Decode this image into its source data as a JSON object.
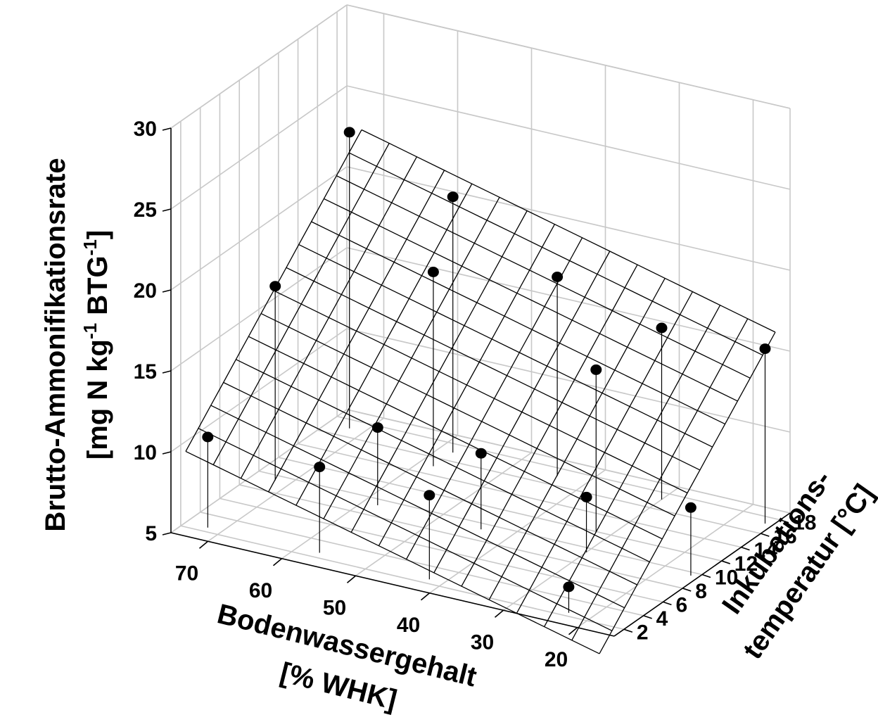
{
  "chart_data": {
    "type": "scatter3d-surface",
    "x_axis": {
      "title_line1": "Bodenwassergehalt",
      "title_line2": "[% WHK]",
      "range": [
        15,
        75
      ],
      "ticks": [
        70,
        60,
        50,
        40,
        30,
        20
      ]
    },
    "y_axis": {
      "title_line1": "Inkubations-",
      "title_line2": "temperatur [°C]",
      "range": [
        1,
        19
      ],
      "ticks": [
        2,
        4,
        6,
        8,
        10,
        12,
        14,
        16,
        18
      ]
    },
    "z_axis": {
      "title_line1": "Brutto-Ammonifikationsrate",
      "title_line2_prefix": "[mg N kg",
      "title_line2_sup1": "-1",
      "title_line2_mid": " BTG",
      "title_line2_sup2": "-1",
      "title_line2_suffix": "]",
      "range": [
        5,
        30
      ],
      "ticks": [
        5,
        10,
        15,
        20,
        25,
        30
      ]
    },
    "points": [
      {
        "x": 72,
        "y": 2.5,
        "z": 10.6
      },
      {
        "x": 57,
        "y": 2.6,
        "z": 10.3
      },
      {
        "x": 42,
        "y": 2.5,
        "z": 10.2
      },
      {
        "x": 23,
        "y": 2.4,
        "z": 6.6
      },
      {
        "x": 72,
        "y": 9.4,
        "z": 17.0
      },
      {
        "x": 58,
        "y": 9.3,
        "z": 9.8
      },
      {
        "x": 44,
        "y": 9.3,
        "z": 9.7
      },
      {
        "x": 30,
        "y": 9.5,
        "z": 8.4
      },
      {
        "x": 16,
        "y": 9.6,
        "z": 9.2
      },
      {
        "x": 72,
        "y": 17.0,
        "z": 23.3
      },
      {
        "x": 58,
        "y": 17.0,
        "z": 20.8
      },
      {
        "x": 44,
        "y": 17.1,
        "z": 17.3
      },
      {
        "x": 30,
        "y": 17.2,
        "z": 15.6
      },
      {
        "x": 16,
        "y": 17.2,
        "z": 15.8
      },
      {
        "x": 58,
        "y": 15.0,
        "z": 17.0
      },
      {
        "x": 32,
        "y": 12.0,
        "z": 15.0
      }
    ]
  }
}
